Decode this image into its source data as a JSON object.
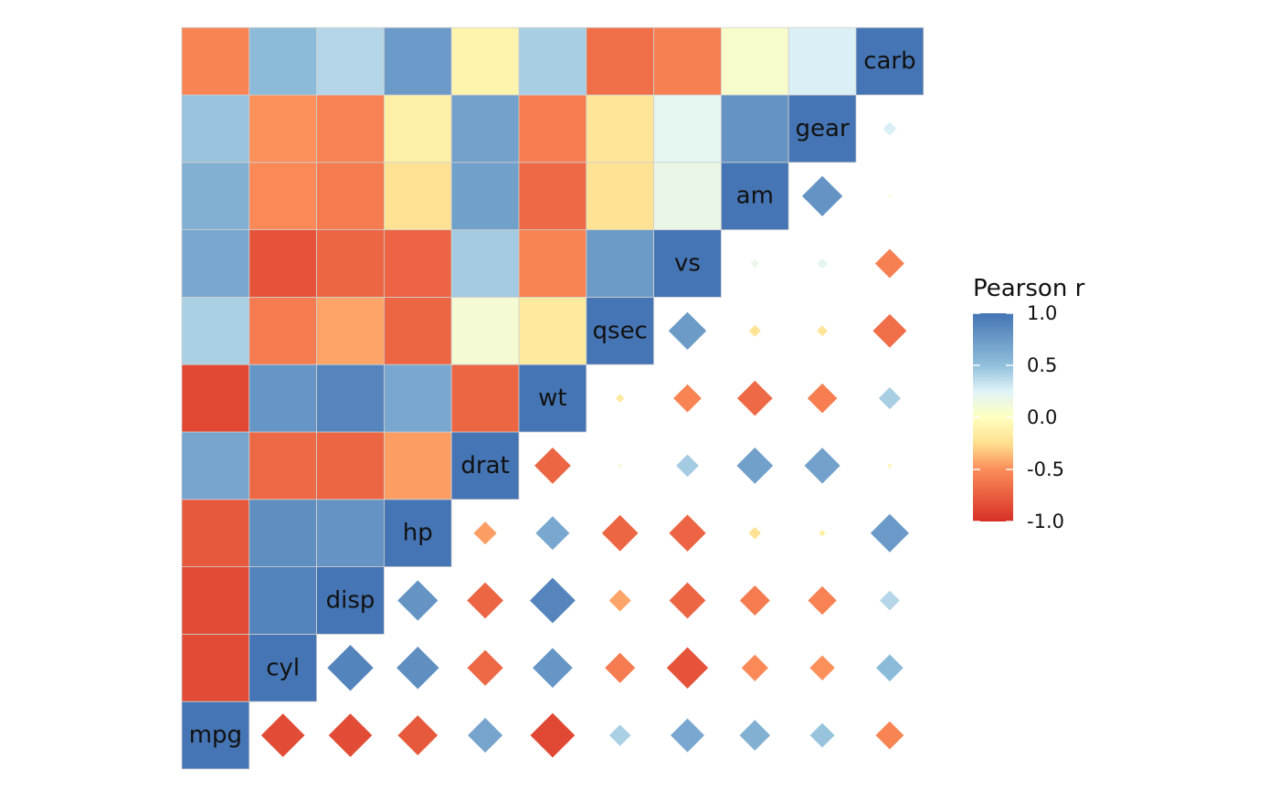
{
  "chart_data": {
    "type": "heatmap",
    "variables": [
      "mpg",
      "cyl",
      "disp",
      "hp",
      "drat",
      "wt",
      "qsec",
      "vs",
      "am",
      "gear",
      "carb"
    ],
    "correlations": [
      [
        1.0,
        -0.85,
        -0.85,
        -0.78,
        0.68,
        -0.87,
        0.42,
        0.66,
        0.6,
        0.48,
        -0.55
      ],
      [
        -0.85,
        1.0,
        0.9,
        0.83,
        -0.7,
        0.78,
        -0.59,
        -0.81,
        -0.52,
        -0.49,
        0.53
      ],
      [
        -0.85,
        0.9,
        1.0,
        0.79,
        -0.71,
        0.89,
        -0.43,
        -0.71,
        -0.59,
        -0.56,
        0.39
      ],
      [
        -0.78,
        0.83,
        0.79,
        1.0,
        -0.45,
        0.66,
        -0.71,
        -0.72,
        -0.24,
        -0.13,
        0.75
      ],
      [
        0.68,
        -0.7,
        -0.71,
        -0.45,
        1.0,
        -0.71,
        0.09,
        0.44,
        0.71,
        0.7,
        -0.09
      ],
      [
        -0.87,
        0.78,
        0.89,
        0.66,
        -0.71,
        1.0,
        -0.17,
        -0.55,
        -0.69,
        -0.58,
        0.43
      ],
      [
        0.42,
        -0.59,
        -0.43,
        -0.71,
        0.09,
        -0.17,
        1.0,
        0.74,
        -0.23,
        -0.21,
        -0.66
      ],
      [
        0.66,
        -0.81,
        -0.71,
        -0.72,
        0.44,
        -0.55,
        0.74,
        1.0,
        0.17,
        0.21,
        -0.57
      ],
      [
        0.6,
        -0.52,
        -0.59,
        -0.24,
        0.71,
        -0.69,
        -0.23,
        0.17,
        1.0,
        0.79,
        0.06
      ],
      [
        0.48,
        -0.49,
        -0.56,
        -0.13,
        0.7,
        -0.58,
        -0.21,
        0.21,
        0.79,
        1.0,
        0.27
      ],
      [
        -0.55,
        0.53,
        0.39,
        0.75,
        -0.09,
        0.43,
        -0.66,
        -0.57,
        0.06,
        0.27,
        1.0
      ]
    ],
    "lower_triangle_glyph": "square",
    "upper_triangle_glyph": "diamond-sized-by-abs-r",
    "legend": {
      "title": "Pearson r",
      "ticks": [
        "1.0",
        "0.5",
        "0.0",
        "-0.5",
        "-1.0"
      ],
      "tick_values": [
        1.0,
        0.5,
        0.0,
        -0.5,
        -1.0
      ],
      "range": [
        -1.0,
        1.0
      ],
      "placement": "right"
    },
    "color_scale": [
      {
        "value": -1.0,
        "color": "#d73027"
      },
      {
        "value": -0.5,
        "color": "#fc8d59"
      },
      {
        "value": -0.25,
        "color": "#fee090"
      },
      {
        "value": 0.0,
        "color": "#ffffbf"
      },
      {
        "value": 0.25,
        "color": "#e0f3f8"
      },
      {
        "value": 0.5,
        "color": "#91bfdb"
      },
      {
        "value": 1.0,
        "color": "#4575b4"
      }
    ]
  }
}
